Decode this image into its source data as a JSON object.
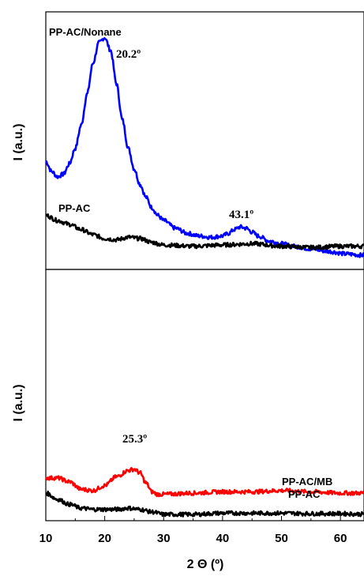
{
  "chart_data": [
    {
      "type": "line",
      "panel": "top",
      "ylabel": "I (a.u.)",
      "xlim": [
        10,
        64
      ],
      "ylim": [
        0,
        100
      ],
      "yticks": "none",
      "series": [
        {
          "name": "PP-AC/Nonane",
          "color": "#0000ff",
          "x": [
            10,
            11,
            12,
            13,
            14,
            15,
            16,
            17,
            18,
            19,
            20,
            21,
            22,
            23,
            24,
            25,
            26,
            27,
            28,
            29,
            30,
            32,
            34,
            36,
            38,
            40,
            41,
            42,
            43,
            44,
            45,
            46,
            48,
            50,
            52,
            55,
            58,
            61,
            64
          ],
          "y": [
            42,
            38,
            36,
            37,
            41,
            47,
            56,
            68,
            80,
            88,
            90,
            85,
            72,
            58,
            47,
            39,
            33,
            28,
            24,
            21,
            19,
            16,
            14,
            13,
            12.5,
            13,
            14,
            15.5,
            16.5,
            16,
            14.5,
            13,
            11,
            10,
            9,
            8,
            7,
            6,
            5.5
          ]
        },
        {
          "name": "PP-AC",
          "color": "#000000",
          "x": [
            10,
            12,
            14,
            16,
            18,
            20,
            22,
            24,
            26,
            28,
            30,
            35,
            40,
            45,
            50,
            55,
            60,
            64
          ],
          "y": [
            21,
            19,
            17.5,
            15.5,
            13.5,
            12,
            11.5,
            12.5,
            12,
            10.5,
            9.5,
            9,
            9.5,
            10,
            9,
            8.5,
            9,
            9
          ]
        }
      ],
      "annotations": [
        {
          "text": "20.2º",
          "x": 20.2
        },
        {
          "text": "43.1º",
          "x": 43.1
        }
      ]
    },
    {
      "type": "line",
      "panel": "bottom",
      "xlabel": "2 Θ (º)",
      "ylabel": "I (a.u.)",
      "xlim": [
        10,
        64
      ],
      "xticks": [
        10,
        20,
        30,
        40,
        50,
        60
      ],
      "ylim": [
        0,
        100
      ],
      "yticks": "none",
      "series": [
        {
          "name": "PP-AC/MB",
          "color": "#ff0000",
          "x": [
            10,
            12,
            14,
            16,
            18,
            20,
            22,
            24,
            25,
            26,
            27,
            28,
            29,
            30,
            35,
            40,
            45,
            50,
            55,
            60,
            64
          ],
          "y": [
            17,
            17,
            15.5,
            12.5,
            12,
            14,
            17.5,
            20,
            20.5,
            19,
            15,
            11.5,
            10.5,
            10.5,
            11,
            11.5,
            11.5,
            12,
            11.5,
            11,
            11
          ]
        },
        {
          "name": "PP-AC",
          "color": "#000000",
          "x": [
            10,
            12,
            14,
            16,
            18,
            20,
            22,
            24,
            26,
            28,
            30,
            35,
            40,
            45,
            50,
            55,
            60,
            64
          ],
          "y": [
            11,
            8.5,
            6.5,
            5,
            4.5,
            4.5,
            4.5,
            5,
            4.5,
            3.5,
            2.5,
            2.5,
            3,
            3,
            3,
            2.8,
            2.8,
            2.6
          ]
        }
      ],
      "annotations": [
        {
          "text": "25.3º",
          "x": 25.3
        }
      ]
    }
  ]
}
